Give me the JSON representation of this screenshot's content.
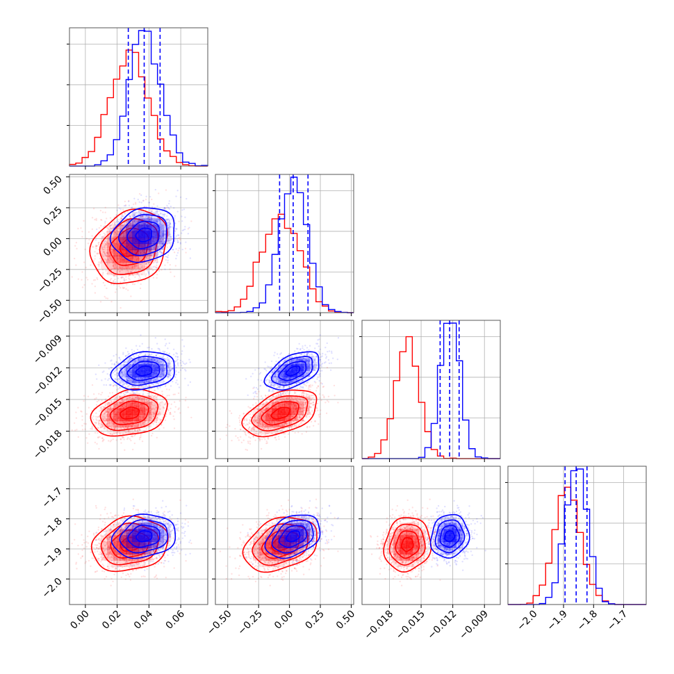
{
  "chart_data": {
    "type": "corner",
    "grid": true,
    "series": [
      {
        "color": "#ff0000",
        "mean": [
          0.028,
          -0.07,
          -0.0163,
          -1.885
        ],
        "sd": [
          0.012,
          0.15,
          0.0011,
          0.045
        ],
        "corr": [
          [
            1,
            0.2,
            0.25,
            0.15
          ],
          [
            0.2,
            1,
            0.45,
            0.3
          ],
          [
            0.25,
            0.45,
            1,
            0.1
          ],
          [
            0.15,
            0.3,
            0.1,
            1
          ]
        ]
      },
      {
        "color": "#0000ff",
        "mean": [
          0.037,
          0.03,
          -0.0123,
          -1.858
        ],
        "sd": [
          0.01,
          0.11,
          0.0009,
          0.036
        ],
        "corr": [
          [
            1,
            0.15,
            0.2,
            0.15
          ],
          [
            0.15,
            1,
            0.5,
            0.35
          ],
          [
            0.2,
            0.5,
            1,
            0.1
          ],
          [
            0.15,
            0.35,
            0.1,
            1
          ]
        ]
      }
    ],
    "quantiles": {
      "color": "#0000ff",
      "values": [
        [
          0.027,
          0.037,
          0.047
        ],
        [
          -0.08,
          0.03,
          0.15
        ],
        [
          -0.0132,
          -0.0123,
          -0.0114
        ],
        [
          -1.895,
          -1.858,
          -1.822
        ]
      ]
    },
    "parameters": [
      {
        "range": [
          -0.01,
          0.077
        ],
        "ticks": [
          0.0,
          0.02,
          0.04,
          0.06
        ],
        "tick_labels": [
          "0.00",
          "0.02",
          "0.04",
          "0.06"
        ]
      },
      {
        "range": [
          -0.6,
          0.52
        ],
        "ticks": [
          -0.5,
          -0.25,
          0.0,
          0.25,
          0.5
        ],
        "tick_labels": [
          "−0.50",
          "−0.25",
          "0.00",
          "0.25",
          "0.50"
        ]
      },
      {
        "range": [
          -0.0206,
          -0.0075
        ],
        "ticks": [
          -0.018,
          -0.015,
          -0.012,
          -0.009
        ],
        "tick_labels": [
          "−0.018",
          "−0.015",
          "−0.012",
          "−0.009"
        ]
      },
      {
        "range": [
          -2.085,
          -1.625
        ],
        "ticks": [
          -2.0,
          -1.9,
          -1.8,
          -1.7
        ],
        "tick_labels": [
          "−2.0",
          "−1.9",
          "−1.8",
          "−1.7"
        ]
      }
    ]
  }
}
